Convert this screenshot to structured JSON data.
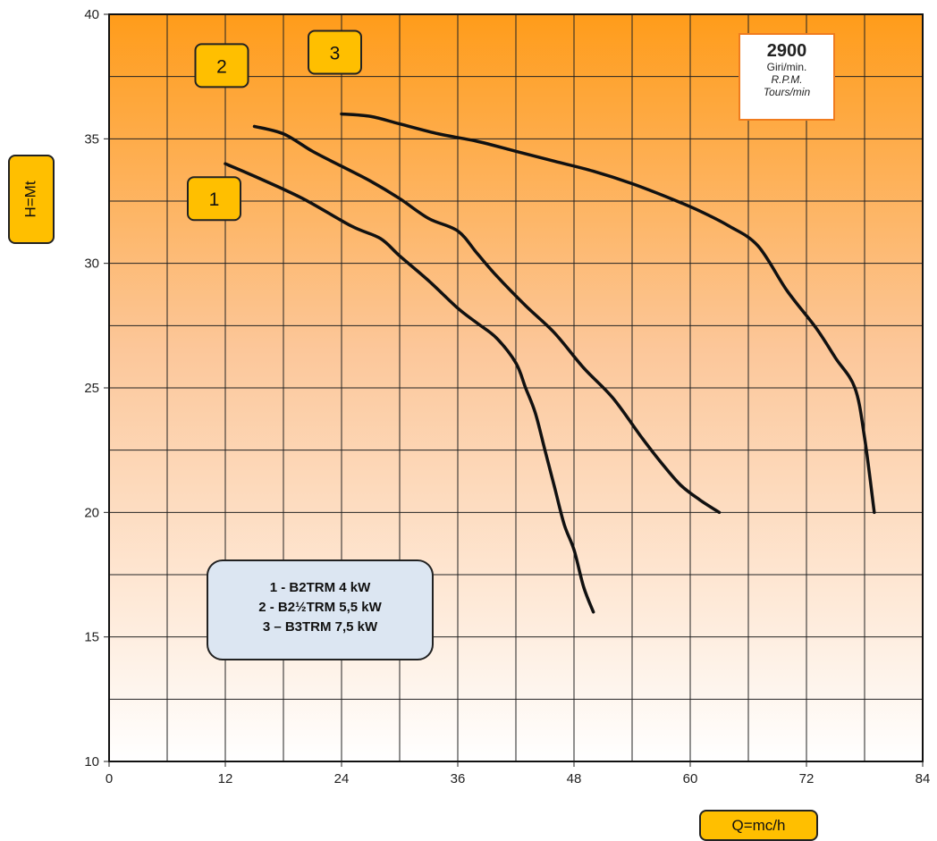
{
  "chart_data": {
    "type": "line",
    "title": "",
    "xlabel": "Q=mc/h",
    "ylabel": "H=Mt",
    "xlim": [
      0,
      84
    ],
    "ylim": [
      10,
      40
    ],
    "xticks": [
      0,
      12,
      24,
      36,
      48,
      60,
      72,
      84
    ],
    "yticks": [
      10,
      15,
      20,
      25,
      30,
      35,
      40
    ],
    "grid": true,
    "background": "orange-to-white vertical gradient",
    "series": [
      {
        "name": "1",
        "points": [
          [
            12,
            34
          ],
          [
            15,
            33.5
          ],
          [
            20,
            32.6
          ],
          [
            25,
            31.5
          ],
          [
            28,
            31
          ],
          [
            30,
            30.3
          ],
          [
            33,
            29.3
          ],
          [
            36,
            28.2
          ],
          [
            38,
            27.6
          ],
          [
            40,
            27
          ],
          [
            42,
            26
          ],
          [
            43,
            25
          ],
          [
            44,
            24
          ],
          [
            45,
            22.5
          ],
          [
            46,
            21
          ],
          [
            47,
            19.5
          ],
          [
            48,
            18.5
          ],
          [
            49,
            17
          ],
          [
            50,
            16
          ]
        ]
      },
      {
        "name": "2",
        "points": [
          [
            15,
            35.5
          ],
          [
            18,
            35.2
          ],
          [
            21,
            34.5
          ],
          [
            24,
            33.9
          ],
          [
            27,
            33.3
          ],
          [
            30,
            32.6
          ],
          [
            33,
            31.8
          ],
          [
            36,
            31.3
          ],
          [
            38,
            30.4
          ],
          [
            40,
            29.5
          ],
          [
            43,
            28.3
          ],
          [
            46,
            27.2
          ],
          [
            49,
            25.8
          ],
          [
            52,
            24.6
          ],
          [
            55,
            23
          ],
          [
            57,
            22
          ],
          [
            59,
            21.1
          ],
          [
            61,
            20.5
          ],
          [
            63,
            20
          ]
        ]
      },
      {
        "name": "3",
        "points": [
          [
            24,
            36
          ],
          [
            27,
            35.9
          ],
          [
            30,
            35.6
          ],
          [
            34,
            35.2
          ],
          [
            38,
            34.9
          ],
          [
            42,
            34.5
          ],
          [
            46,
            34.1
          ],
          [
            50,
            33.7
          ],
          [
            54,
            33.2
          ],
          [
            58,
            32.6
          ],
          [
            61,
            32.1
          ],
          [
            64,
            31.5
          ],
          [
            67,
            30.7
          ],
          [
            70,
            28.9
          ],
          [
            73,
            27.4
          ],
          [
            75,
            26.2
          ],
          [
            77,
            25
          ],
          [
            78,
            23
          ],
          [
            79,
            20
          ]
        ]
      }
    ],
    "curve_labels": [
      "1",
      "2",
      "3"
    ],
    "annotations": {
      "rpm": {
        "value": "2900",
        "line1": "Giri/min.",
        "line2": "R.P.M.",
        "line3": "Tours/min"
      },
      "legend": [
        "1 - B2TRM 4 kW",
        "2 - B2½TRM 5,5 kW",
        "3 – B3TRM 7,5 kW"
      ]
    },
    "colors": {
      "gradient_top": "#ff9c1a",
      "gradient_bottom": "#ffffff",
      "curve": "#111111",
      "label_fill": "#ffbf00",
      "legend_fill": "#dce6f2",
      "rpm_border": "#f07c1e"
    }
  }
}
